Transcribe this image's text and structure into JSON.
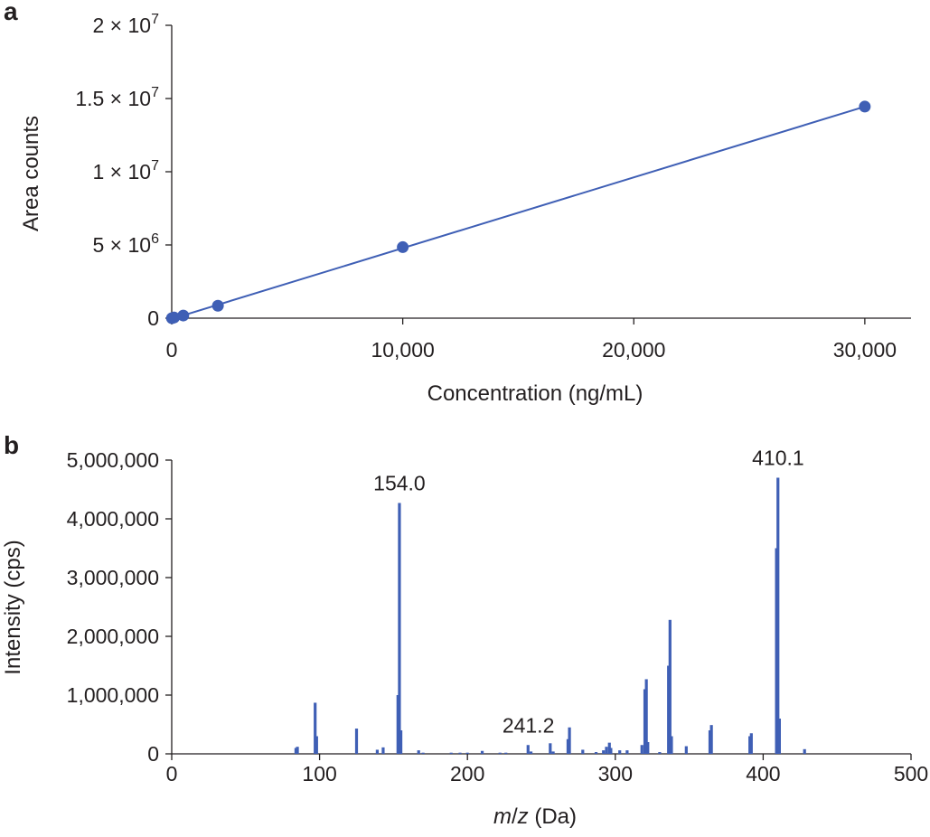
{
  "chart_data": [
    {
      "panel": "a",
      "type": "scatter",
      "series_color": "#3f5fb5",
      "xlabel": "Concentration (ng/mL)",
      "ylabel": "Area counts",
      "xlim": [
        0,
        32000
      ],
      "ylim": [
        0,
        20000000
      ],
      "x_ticks": [
        0,
        10000,
        20000,
        30000
      ],
      "x_tick_labels": [
        "0",
        "10,000",
        "20,000",
        "30,000"
      ],
      "y_ticks": [
        0,
        5000000,
        10000000,
        15000000,
        20000000
      ],
      "y_tick_labels": [
        {
          "base": "0",
          "exp": ""
        },
        {
          "base": "5 × 10",
          "exp": "6"
        },
        {
          "base": "1 × 10",
          "exp": "7"
        },
        {
          "base": "1.5 × 10",
          "exp": "7"
        },
        {
          "base": "2 × 10",
          "exp": "7"
        }
      ],
      "points": [
        {
          "x": 10,
          "y": 0
        },
        {
          "x": 100,
          "y": 45000
        },
        {
          "x": 500,
          "y": 180000
        },
        {
          "x": 2000,
          "y": 850000
        },
        {
          "x": 10000,
          "y": 4850000
        },
        {
          "x": 30000,
          "y": 14450000
        }
      ],
      "fit_line": {
        "x": [
          0,
          30000
        ],
        "y": [
          -50000,
          14450000
        ]
      },
      "grid": false
    },
    {
      "panel": "b",
      "type": "bar",
      "series_color": "#3f5fb5",
      "xlabel_italic_1": "m",
      "xlabel_sep": "/",
      "xlabel_italic_2": "z",
      "xlabel_rest": " (Da)",
      "ylabel": "Intensity (cps)",
      "xlim": [
        0,
        500
      ],
      "ylim": [
        0,
        5000000
      ],
      "x_ticks": [
        0,
        100,
        200,
        300,
        400,
        500
      ],
      "x_tick_labels": [
        "0",
        "100",
        "200",
        "300",
        "400",
        "500"
      ],
      "y_ticks": [
        0,
        1000000,
        2000000,
        3000000,
        4000000,
        5000000
      ],
      "y_tick_labels": [
        "0",
        "1,000,000",
        "2,000,000",
        "3,000,000",
        "4,000,000",
        "5,000,000"
      ],
      "peaks": [
        {
          "x": 84,
          "y": 100000
        },
        {
          "x": 85,
          "y": 120000
        },
        {
          "x": 97,
          "y": 870000
        },
        {
          "x": 98,
          "y": 300000
        },
        {
          "x": 125,
          "y": 430000
        },
        {
          "x": 139,
          "y": 70000
        },
        {
          "x": 143,
          "y": 110000
        },
        {
          "x": 153,
          "y": 1000000
        },
        {
          "x": 154,
          "y": 4270000
        },
        {
          "x": 155,
          "y": 400000
        },
        {
          "x": 167,
          "y": 60000
        },
        {
          "x": 170,
          "y": 20000
        },
        {
          "x": 189,
          "y": 20000
        },
        {
          "x": 195,
          "y": 20000
        },
        {
          "x": 200,
          "y": 20000
        },
        {
          "x": 210,
          "y": 50000
        },
        {
          "x": 222,
          "y": 20000
        },
        {
          "x": 226,
          "y": 20000
        },
        {
          "x": 241,
          "y": 150000
        },
        {
          "x": 243,
          "y": 40000
        },
        {
          "x": 256,
          "y": 180000
        },
        {
          "x": 258,
          "y": 40000
        },
        {
          "x": 268,
          "y": 250000
        },
        {
          "x": 269,
          "y": 450000
        },
        {
          "x": 278,
          "y": 70000
        },
        {
          "x": 287,
          "y": 30000
        },
        {
          "x": 292,
          "y": 60000
        },
        {
          "x": 294,
          "y": 120000
        },
        {
          "x": 296,
          "y": 190000
        },
        {
          "x": 297,
          "y": 100000
        },
        {
          "x": 303,
          "y": 60000
        },
        {
          "x": 308,
          "y": 60000
        },
        {
          "x": 318,
          "y": 150000
        },
        {
          "x": 320,
          "y": 1100000
        },
        {
          "x": 321,
          "y": 1270000
        },
        {
          "x": 322,
          "y": 200000
        },
        {
          "x": 330,
          "y": 30000
        },
        {
          "x": 336,
          "y": 1500000
        },
        {
          "x": 337,
          "y": 2280000
        },
        {
          "x": 338,
          "y": 300000
        },
        {
          "x": 348,
          "y": 130000
        },
        {
          "x": 364,
          "y": 400000
        },
        {
          "x": 365,
          "y": 490000
        },
        {
          "x": 391,
          "y": 300000
        },
        {
          "x": 392,
          "y": 350000
        },
        {
          "x": 409,
          "y": 3500000
        },
        {
          "x": 410,
          "y": 4700000
        },
        {
          "x": 411,
          "y": 600000
        },
        {
          "x": 428,
          "y": 80000
        }
      ],
      "annotations": [
        {
          "x": 154.0,
          "y": 4270000,
          "label": "154.0"
        },
        {
          "x": 241.2,
          "y": 150000,
          "label": "241.2"
        },
        {
          "x": 410.1,
          "y": 4700000,
          "label": "410.1"
        }
      ],
      "grid": false
    }
  ]
}
